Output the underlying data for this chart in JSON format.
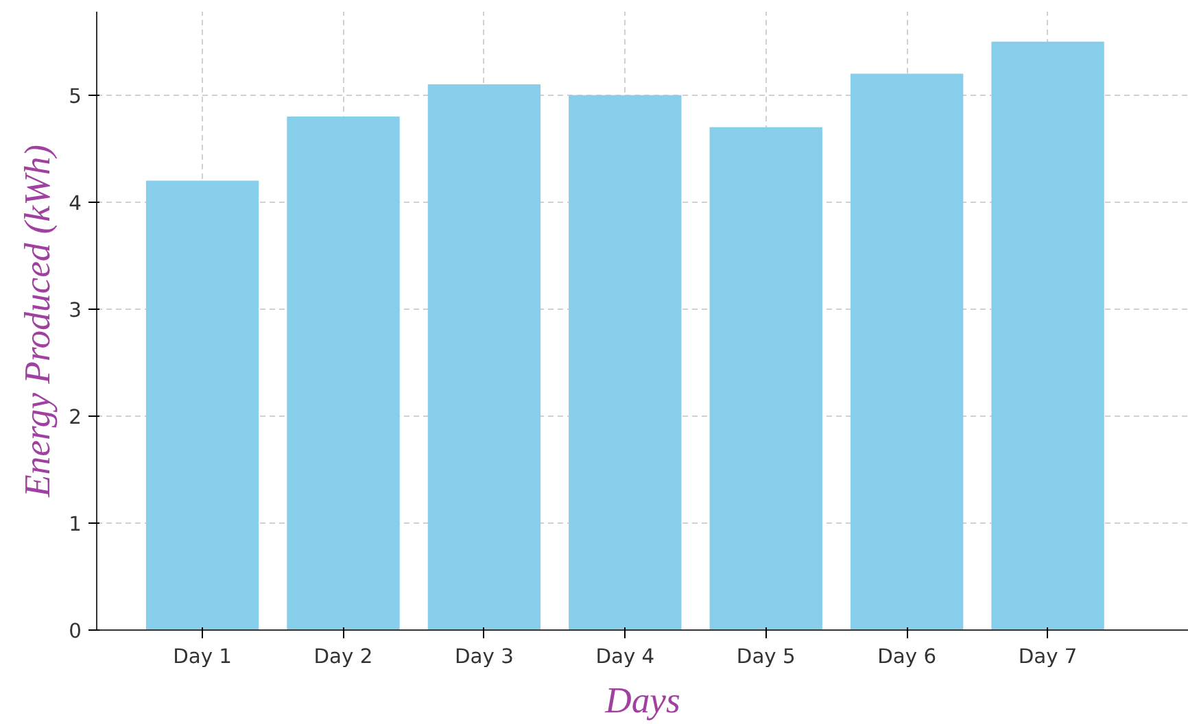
{
  "chart_data": {
    "type": "bar",
    "xlabel": "Days",
    "ylabel": "Energy Produced (kWh)",
    "categories": [
      "Day 1",
      "Day 2",
      "Day 3",
      "Day 4",
      "Day 5",
      "Day 6",
      "Day 7"
    ],
    "values": [
      4.2,
      4.8,
      5.1,
      5.0,
      4.7,
      5.2,
      5.5
    ],
    "color": "#87ceeb",
    "ylim": [
      0,
      5.78
    ],
    "yticks": [
      0,
      1,
      2,
      3,
      4,
      5
    ],
    "grid": true
  }
}
